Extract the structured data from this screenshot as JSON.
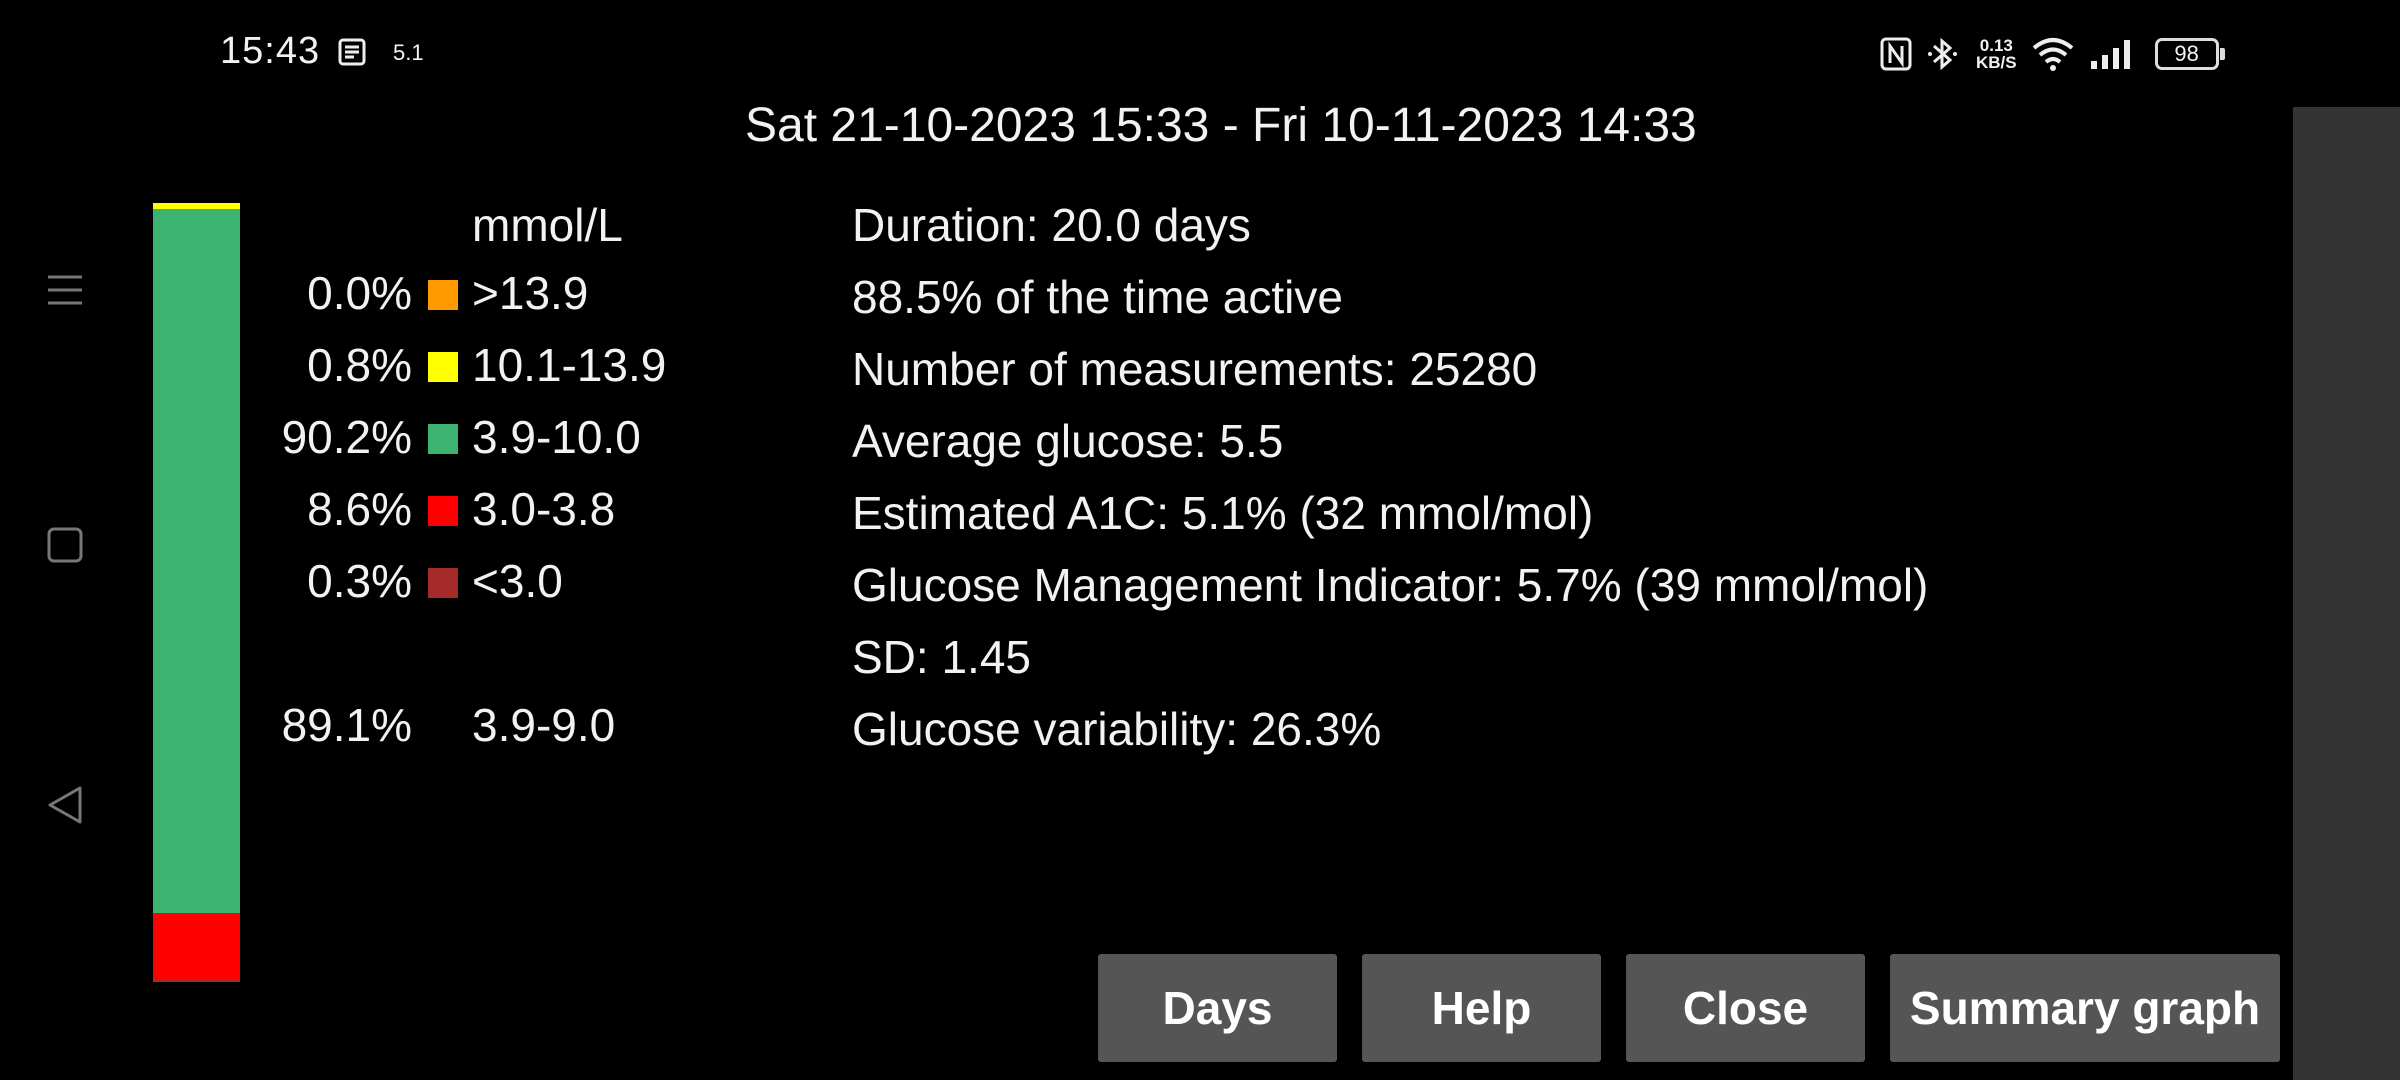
{
  "status_bar": {
    "time": "15:43",
    "speed_small": "5.1",
    "net_speed_value": "0.13",
    "net_speed_unit": "KB/S",
    "battery": "98",
    "icons": [
      "notes-icon",
      "nfc-icon",
      "bluetooth-icon",
      "wifi-icon",
      "signal-icon",
      "battery-icon"
    ]
  },
  "date_range": "Sat 21-10-2023 15:33 - Fri 10-11-2023 14:33",
  "unit_header": "mmol/L",
  "bar_segments": [
    {
      "name": ">13.9",
      "fraction": 0.0,
      "color": "#ff9900"
    },
    {
      "name": "10.1-13.9",
      "fraction": 0.008,
      "color": "#ffff00"
    },
    {
      "name": "3.9-10.0",
      "fraction": 0.902,
      "color": "#3cb371"
    },
    {
      "name": "3.0-3.8",
      "fraction": 0.086,
      "color": "#ff0000"
    },
    {
      "name": "<3.0",
      "fraction": 0.003,
      "color": "#a52a2a"
    }
  ],
  "ranges": [
    {
      "pct": "0.0%",
      "label": ">13.9",
      "color": "#ff9900"
    },
    {
      "pct": "0.8%",
      "label": "10.1-13.9",
      "color": "#ffff00"
    },
    {
      "pct": "90.2%",
      "label": "3.9-10.0",
      "color": "#3cb371"
    },
    {
      "pct": "8.6%",
      "label": "3.0-3.8",
      "color": "#ff0000"
    },
    {
      "pct": "0.3%",
      "label": "<3.0",
      "color": "#a52a2a"
    },
    {
      "pct": "89.1%",
      "label": "3.9-9.0"
    }
  ],
  "stats": [
    "Duration: 20.0 days",
    "88.5% of the time active",
    "Number of measurements: 25280",
    "Average glucose: 5.5",
    "Estimated A1C: 5.1% (32 mmol/mol)",
    "Glucose Management Indicator: 5.7% (39 mmol/mol)",
    "SD: 1.45",
    "Glucose variability: 26.3%"
  ],
  "buttons": {
    "days": "Days",
    "help": "Help",
    "close": "Close",
    "summary_graph": "Summary graph"
  }
}
